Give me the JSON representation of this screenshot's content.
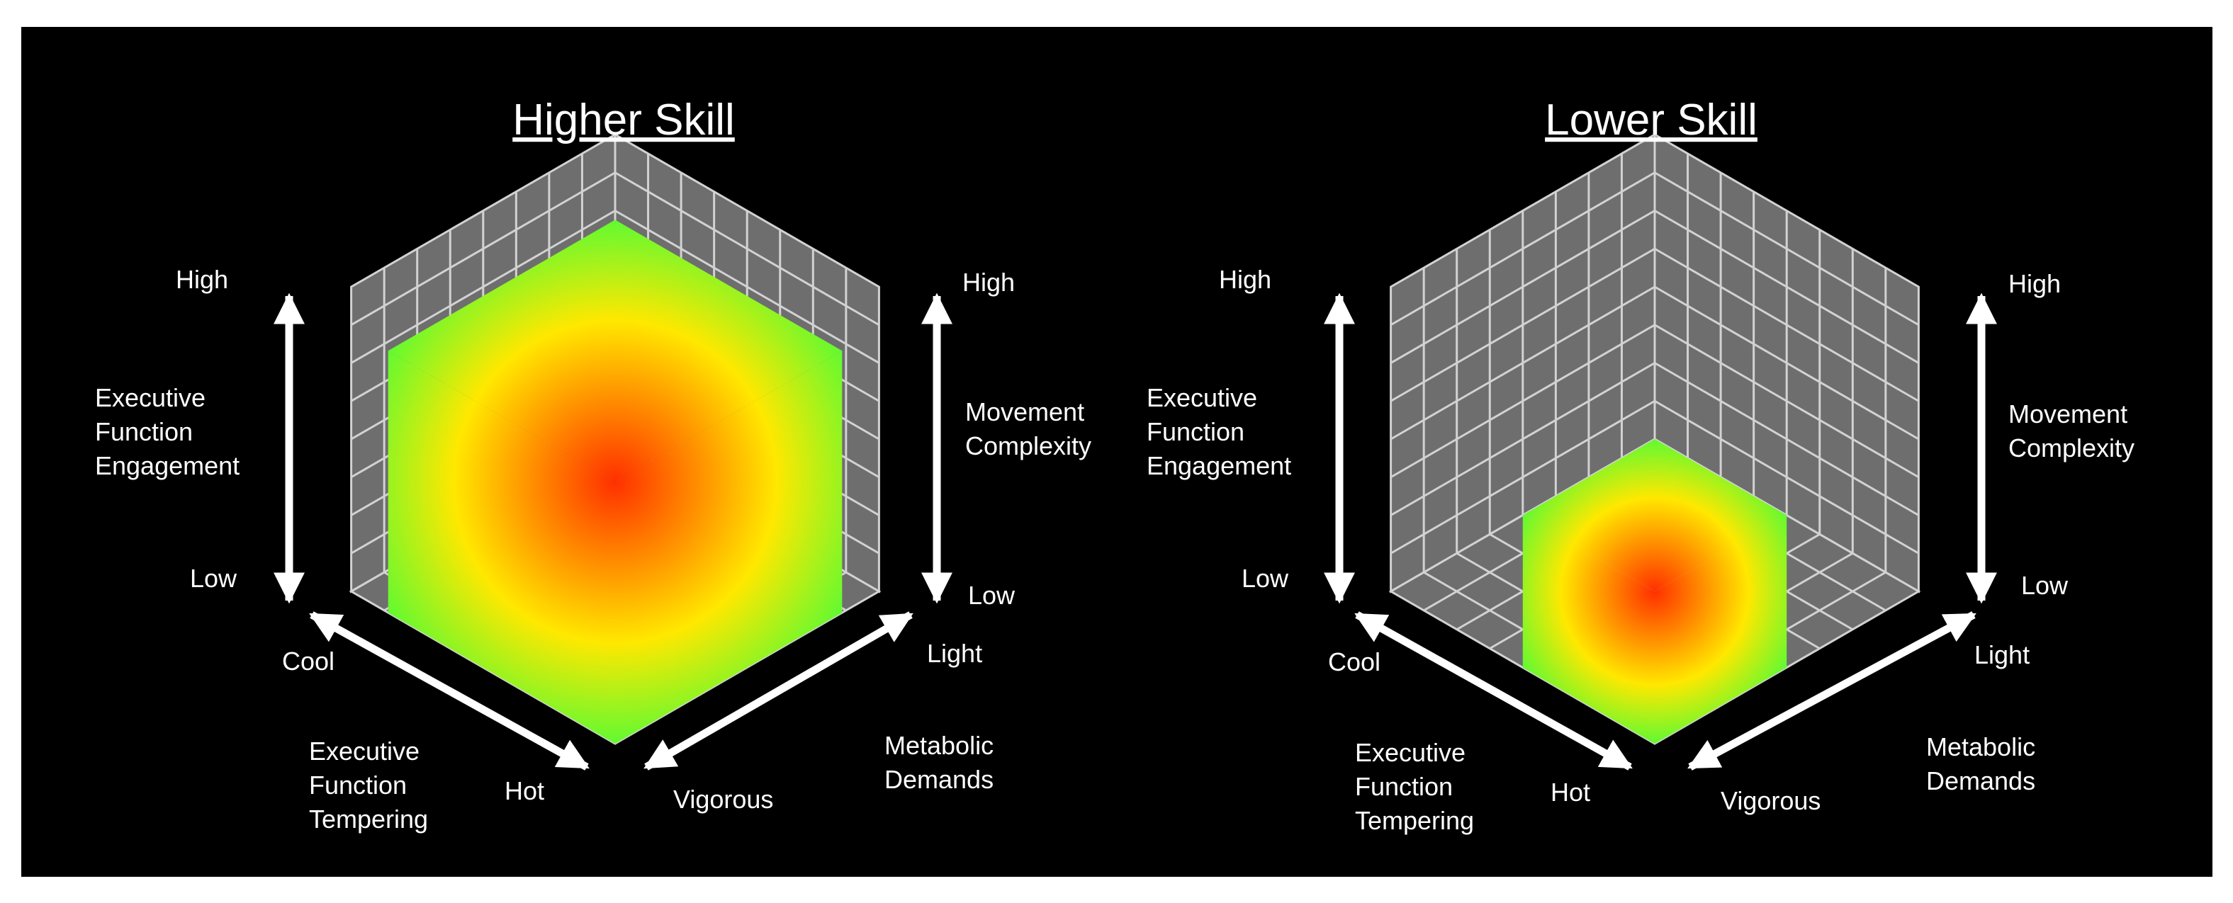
{
  "colors": {
    "background": "#000000",
    "grid_pane": "#6e6e6e",
    "grid_line": "#d2d2d2",
    "arrow": "#ffffff",
    "text": "#ffffff",
    "cube_center": "#ff3000",
    "cube_mid": "#ffe800",
    "cube_edge": "#30ff40"
  },
  "panels": [
    {
      "title": "Higher Skill",
      "cube_size": 0.86,
      "axes": {
        "vertical_left": {
          "high": "High",
          "low": "Low",
          "name": [
            "Executive",
            "Function",
            "Engagement"
          ]
        },
        "vertical_right": {
          "high": "High",
          "low": "Low",
          "name": [
            "Movement",
            "Complexity"
          ]
        },
        "diagonal_left": {
          "near": "Cool",
          "far": "Hot",
          "name": [
            "Executive",
            "Function",
            "Tempering"
          ]
        },
        "diagonal_right": {
          "near": "Light",
          "far": "Vigorous",
          "name": [
            "Metabolic",
            "Demands"
          ]
        }
      }
    },
    {
      "title": "Lower Skill",
      "cube_size": 0.5,
      "axes": {
        "vertical_left": {
          "high": "High",
          "low": "Low",
          "name": [
            "Executive",
            "Function",
            "Engagement"
          ]
        },
        "vertical_right": {
          "high": "High",
          "low": "Low",
          "name": [
            "Movement",
            "Complexity"
          ]
        },
        "diagonal_left": {
          "near": "Cool",
          "far": "Hot",
          "name": [
            "Executive",
            "Function",
            "Tempering"
          ]
        },
        "diagonal_right": {
          "near": "Light",
          "far": "Vigorous",
          "name": [
            "Metabolic",
            "Demands"
          ]
        }
      }
    }
  ]
}
